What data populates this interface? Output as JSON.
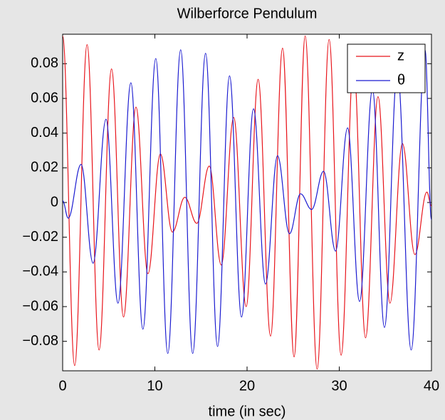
{
  "chart_data": {
    "type": "line",
    "title": "Wilberforce Pendulum",
    "xlabel": "time (in sec)",
    "xlim": [
      0,
      40
    ],
    "ylim": [
      -0.097,
      0.097
    ],
    "xticks": [
      0,
      10,
      20,
      30,
      40
    ],
    "yticks": [
      {
        "value": -0.08,
        "label": "−0.08"
      },
      {
        "value": -0.06,
        "label": "−0.06"
      },
      {
        "value": -0.04,
        "label": "−0.04"
      },
      {
        "value": -0.02,
        "label": "−0.02"
      },
      0,
      0.02,
      0.04,
      0.06,
      0.08
    ],
    "grid": false,
    "legend": "upper right",
    "series": [
      {
        "name": "z",
        "color": "#e8141b",
        "x": [
          0,
          1.3,
          2.65,
          3.95,
          5.3,
          6.6,
          7.95,
          9.25,
          10.6,
          11.9,
          13.25,
          14.55,
          15.9,
          17.2,
          18.55,
          19.9,
          21.2,
          22.55,
          23.85,
          25.1,
          26.3,
          27.6,
          28.9,
          30.2,
          31.55,
          32.85,
          34.2,
          35.5,
          36.85,
          38.2,
          39.5,
          40
        ],
        "values": [
          0.096,
          -0.094,
          0.091,
          -0.085,
          0.077,
          -0.066,
          0.055,
          -0.041,
          0.028,
          -0.017,
          0.003,
          -0.012,
          0.021,
          -0.036,
          0.049,
          -0.06,
          0.071,
          -0.077,
          0.089,
          -0.089,
          0.096,
          -0.096,
          0.094,
          -0.088,
          0.08,
          -0.078,
          0.061,
          -0.058,
          0.034,
          -0.03,
          0.006,
          -0.002
        ]
      },
      {
        "name": "θ",
        "color": "#1a1ad0",
        "x": [
          0,
          0.6,
          2.0,
          3.3,
          4.7,
          6.0,
          7.4,
          8.7,
          10.1,
          11.4,
          12.8,
          14.1,
          15.5,
          16.8,
          18.1,
          19.4,
          20.7,
          22.0,
          23.3,
          24.6,
          25.8,
          27.0,
          28.3,
          29.6,
          30.9,
          32.2,
          33.6,
          34.9,
          36.3,
          37.8,
          39.3,
          40
        ],
        "values": [
          0.001,
          -0.009,
          0.022,
          -0.035,
          0.048,
          -0.058,
          0.069,
          -0.073,
          0.083,
          -0.087,
          0.088,
          -0.087,
          0.086,
          -0.083,
          0.073,
          -0.066,
          0.054,
          -0.047,
          0.027,
          -0.018,
          0.005,
          -0.004,
          0.018,
          -0.028,
          0.043,
          -0.057,
          0.065,
          -0.072,
          0.076,
          -0.085,
          0.088,
          -0.01
        ]
      }
    ]
  }
}
